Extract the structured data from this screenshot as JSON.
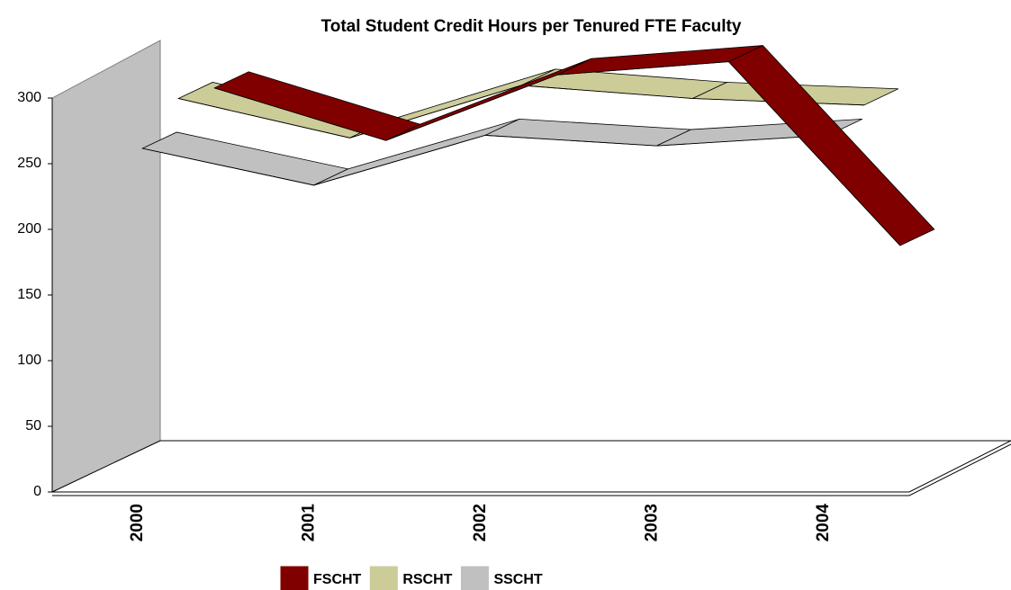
{
  "chart_data": {
    "type": "line",
    "title": "Total Student Credit Hours per Tenured FTE Faculty",
    "categories": [
      "2000",
      "2001",
      "2002",
      "2003",
      "2004"
    ],
    "series": [
      {
        "name": "FSCHT",
        "color": "#800000",
        "values": [
          280,
          240,
          290,
          300,
          160
        ]
      },
      {
        "name": "RSCHT",
        "color": "#cccc99",
        "values": [
          285,
          255,
          295,
          285,
          280
        ]
      },
      {
        "name": "SSCHT",
        "color": "#c0c0c0",
        "values": [
          260,
          232,
          270,
          262,
          270
        ]
      }
    ],
    "ylim": [
      0,
      300
    ],
    "yticks": [
      0,
      50,
      100,
      150,
      200,
      250,
      300
    ],
    "legend": "bottom"
  }
}
